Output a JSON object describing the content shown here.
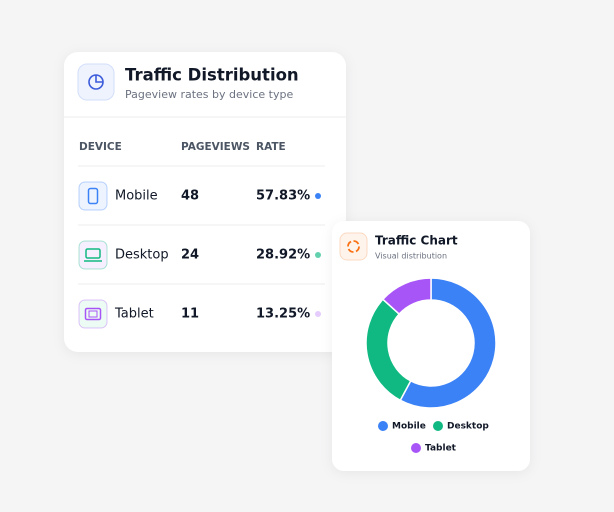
{
  "header": {
    "title": "Traffic Distribution",
    "subtitle": "Pageview rates by device type"
  },
  "table": {
    "columns": [
      "DEVICE",
      "PAGEVIEWS",
      "RATE"
    ],
    "rows": [
      {
        "device": "Mobile",
        "pageviews": 48,
        "rate": "57.83%"
      },
      {
        "device": "Desktop",
        "pageviews": 24,
        "rate": "28.92%"
      },
      {
        "device": "Tablet",
        "pageviews": 11,
        "rate": "13.25%"
      }
    ]
  },
  "chart_card": {
    "type": "donut",
    "title": "Traffic Chart",
    "subtitle": "Visual distribution",
    "legend": [
      {
        "name": "Mobile",
        "color": "#3b82f6"
      },
      {
        "name": "Desktop",
        "color": "#10b981"
      },
      {
        "name": "Tablet",
        "color": "#a855f7"
      }
    ]
  }
}
